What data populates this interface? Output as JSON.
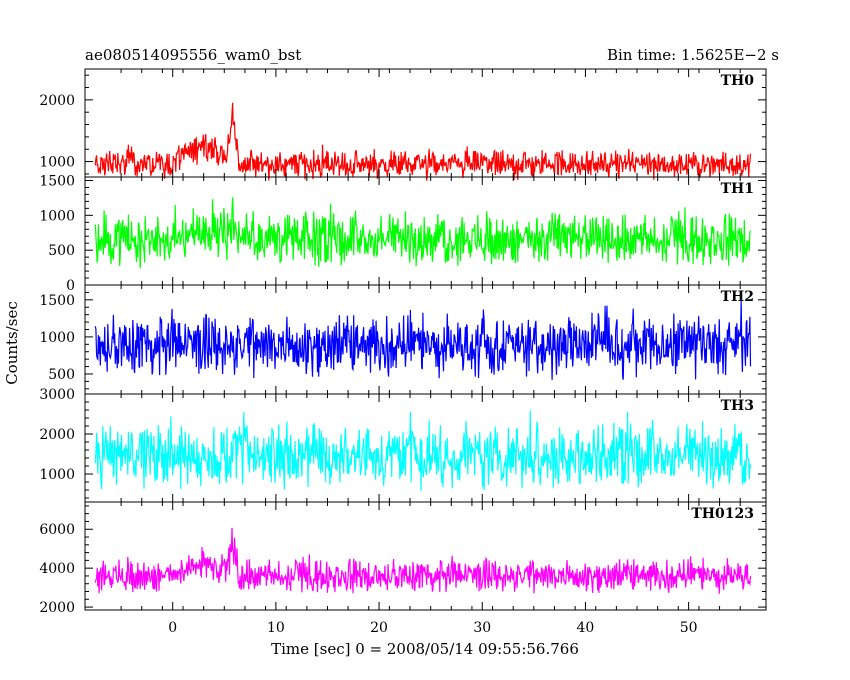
{
  "chart_data": {
    "type": "line",
    "title_left": "ae080514095556_wam0_bst",
    "title_right": "Bin time: 1.5625E−2 s",
    "xlabel": "Time [sec] 0 = 2008/05/14 09:55:56.766",
    "ylabel": "Counts/sec",
    "xlim": [
      -8.5,
      57.5
    ],
    "x_ticks": [
      0,
      10,
      20,
      30,
      40,
      50
    ],
    "x_range": [
      -7.5,
      56
    ],
    "bin_time": 0.015625,
    "grid": false,
    "panels": [
      {
        "name": "TH0",
        "color": "#ff0000",
        "ylim": [
          750,
          2500
        ],
        "yticks": [
          1000,
          2000
        ],
        "base": 950,
        "amp": 280,
        "floor": 760,
        "bursts": [
          {
            "t0": 0,
            "t1": 5.5,
            "peak": 3.0,
            "add": 350
          },
          {
            "t0": 5.3,
            "t1": 6.5,
            "peak": 5.8,
            "add": 800
          }
        ]
      },
      {
        "name": "TH1",
        "color": "#00ff00",
        "ylim": [
          0,
          1550
        ],
        "yticks": [
          0,
          500,
          1000,
          1500
        ],
        "base": 650,
        "amp": 420,
        "floor": 80,
        "bursts": [
          {
            "t0": 0,
            "t1": 5.5,
            "peak": 3.0,
            "add": 150
          },
          {
            "t0": 5.3,
            "t1": 6.5,
            "peak": 5.8,
            "add": 300
          }
        ]
      },
      {
        "name": "TH2",
        "color": "#0000ff",
        "ylim": [
          230,
          1700
        ],
        "yticks": [
          500,
          1000,
          1500
        ],
        "base": 880,
        "amp": 480,
        "floor": 240,
        "bursts": []
      },
      {
        "name": "TH3",
        "color": "#00ffff",
        "ylim": [
          300,
          3000
        ],
        "yticks": [
          1000,
          2000,
          3000
        ],
        "base": 1450,
        "amp": 900,
        "floor": 380,
        "bursts": []
      },
      {
        "name": "TH0123",
        "color": "#ff00ff",
        "ylim": [
          1850,
          7400
        ],
        "yticks": [
          2000,
          4000,
          6000
        ],
        "base": 3600,
        "amp": 1000,
        "floor": 2100,
        "bursts": [
          {
            "t0": 0,
            "t1": 5.5,
            "peak": 3.0,
            "add": 700
          },
          {
            "t0": 5.3,
            "t1": 6.5,
            "peak": 5.8,
            "add": 1700
          }
        ]
      }
    ]
  }
}
